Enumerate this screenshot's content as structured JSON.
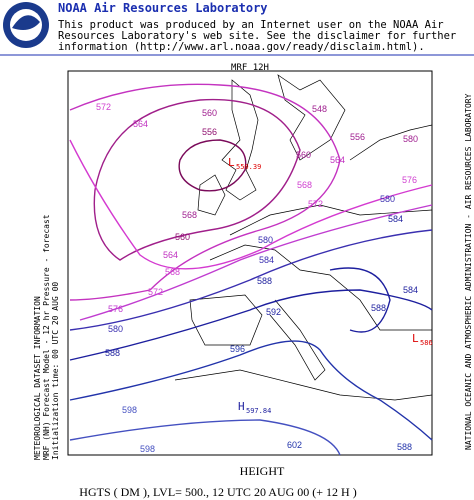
{
  "header": {
    "title": "NOAA Air Resources Laboratory",
    "disclaimer": [
      "This product was produced by an Internet user on the NOAA Air",
      "Resources Laboratory's web site.  See the disclaimer for further",
      "information (http://www.arl.noaa.gov/ready/disclaim.html)."
    ]
  },
  "map": {
    "top_label": "MRF 12H",
    "left_info": [
      "METEOROLOGICAL DATASET INFORMATION",
      "MRF (NH) Forecast Model - 12 hr  Pressure - forecast",
      "Initialization time: 00 UTC 20 AUG 00"
    ],
    "right_info": "NATIONAL OCEANIC AND ATMOSPHERIC ADMINISTRATION - AIR RESOURCES LABORATORY",
    "contour_labels": [
      "572",
      "564",
      "560",
      "556",
      "548",
      "556",
      "560",
      "564",
      "568",
      "572",
      "576",
      "580",
      "580",
      "584",
      "568",
      "560",
      "564",
      "568",
      "572",
      "576",
      "580",
      "588",
      "596",
      "592",
      "588",
      "584",
      "580",
      "598",
      "598",
      "602",
      "588",
      "588",
      "584"
    ],
    "lows": [
      {
        "symbol": "L",
        "value": "550.39"
      },
      {
        "symbol": "L",
        "value": "586"
      }
    ],
    "highs": [
      {
        "symbol": "H",
        "value": "597.84"
      }
    ]
  },
  "footer": {
    "title": "HEIGHT",
    "caption": "HGTS ( DM ),  LVL= 500., 12 UTC 20 AUG 00 (+ 12 H )"
  }
}
